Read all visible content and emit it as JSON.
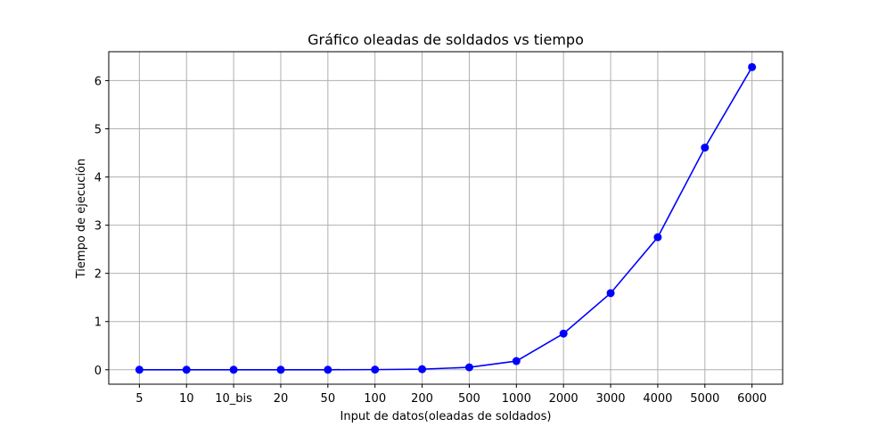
{
  "chart_data": {
    "type": "line",
    "title": "Gráfico oleadas de soldados vs tiempo",
    "xlabel": "Input de datos(oleadas de soldados)",
    "ylabel": "Tiempo de ejecución",
    "categories": [
      "5",
      "10",
      "10_bis",
      "20",
      "50",
      "100",
      "200",
      "500",
      "1000",
      "2000",
      "3000",
      "4000",
      "5000",
      "6000"
    ],
    "series": [
      {
        "values": [
          0.0,
          0.0,
          0.0,
          0.0,
          0.0,
          0.003,
          0.012,
          0.05,
          0.18,
          0.75,
          1.59,
          2.75,
          4.61,
          6.28
        ],
        "color": "#0000ff",
        "marker": "circle"
      }
    ],
    "yticks": [
      0,
      1,
      2,
      3,
      4,
      5,
      6
    ],
    "ylim": [
      -0.3,
      6.6
    ],
    "grid": true,
    "legend": "none"
  }
}
